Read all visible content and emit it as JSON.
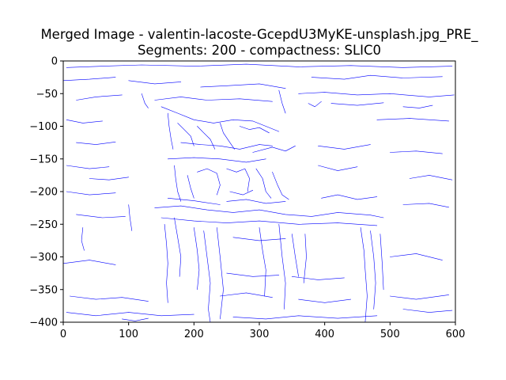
{
  "chart_data": {
    "type": "contour",
    "title_line1": "Merged Image - valentin-lacoste-GcepdU3MyKE-unsplash.jpg_PRE_",
    "title_line2": "Segments: 200 - compactness: SLIC0",
    "xlabel": "",
    "ylabel": "",
    "xlim": [
      0,
      600
    ],
    "ylim": [
      -400,
      0
    ],
    "x_ticks": [
      0,
      100,
      200,
      300,
      400,
      500,
      600
    ],
    "y_ticks": [
      0,
      -50,
      -100,
      -150,
      -200,
      -250,
      -300,
      -350,
      -400
    ],
    "grid": false,
    "line_color": "#0000ff",
    "segments": [
      [
        [
          5,
          -10
        ],
        [
          60,
          -8
        ],
        [
          120,
          -6
        ],
        [
          200,
          -8
        ],
        [
          280,
          -5
        ],
        [
          360,
          -9
        ],
        [
          440,
          -7
        ],
        [
          520,
          -10
        ],
        [
          595,
          -8
        ]
      ],
      [
        [
          0,
          -30
        ],
        [
          40,
          -28
        ],
        [
          80,
          -25
        ]
      ],
      [
        [
          100,
          -30
        ],
        [
          140,
          -35
        ],
        [
          180,
          -32
        ]
      ],
      [
        [
          210,
          -40
        ],
        [
          250,
          -38
        ],
        [
          300,
          -35
        ],
        [
          340,
          -42
        ]
      ],
      [
        [
          380,
          -25
        ],
        [
          430,
          -28
        ],
        [
          470,
          -22
        ],
        [
          520,
          -26
        ],
        [
          580,
          -24
        ]
      ],
      [
        [
          20,
          -60
        ],
        [
          50,
          -55
        ],
        [
          90,
          -52
        ]
      ],
      [
        [
          120,
          -50
        ],
        [
          125,
          -65
        ],
        [
          130,
          -72
        ]
      ],
      [
        [
          140,
          -60
        ],
        [
          180,
          -55
        ],
        [
          220,
          -60
        ],
        [
          270,
          -58
        ],
        [
          320,
          -62
        ]
      ],
      [
        [
          330,
          -45
        ],
        [
          335,
          -65
        ],
        [
          340,
          -80
        ]
      ],
      [
        [
          360,
          -50
        ],
        [
          400,
          -48
        ],
        [
          450,
          -52
        ],
        [
          500,
          -50
        ],
        [
          560,
          -55
        ],
        [
          598,
          -52
        ]
      ],
      [
        [
          375,
          -65
        ],
        [
          385,
          -70
        ],
        [
          395,
          -62
        ]
      ],
      [
        [
          410,
          -65
        ],
        [
          450,
          -68
        ],
        [
          490,
          -64
        ]
      ],
      [
        [
          520,
          -70
        ],
        [
          545,
          -72
        ],
        [
          565,
          -68
        ]
      ],
      [
        [
          5,
          -90
        ],
        [
          30,
          -95
        ],
        [
          60,
          -92
        ]
      ],
      [
        [
          480,
          -90
        ],
        [
          530,
          -88
        ],
        [
          590,
          -92
        ]
      ],
      [
        [
          150,
          -70
        ],
        [
          175,
          -80
        ],
        [
          200,
          -90
        ],
        [
          230,
          -95
        ],
        [
          260,
          -90
        ],
        [
          290,
          -92
        ],
        [
          310,
          -100
        ],
        [
          330,
          -108
        ]
      ],
      [
        [
          160,
          -80
        ],
        [
          162,
          -100
        ],
        [
          165,
          -120
        ],
        [
          168,
          -135
        ]
      ],
      [
        [
          175,
          -95
        ],
        [
          185,
          -105
        ],
        [
          195,
          -115
        ],
        [
          200,
          -130
        ]
      ],
      [
        [
          205,
          -100
        ],
        [
          215,
          -110
        ],
        [
          225,
          -120
        ],
        [
          232,
          -135
        ]
      ],
      [
        [
          240,
          -95
        ],
        [
          245,
          -110
        ],
        [
          255,
          -125
        ],
        [
          262,
          -135
        ]
      ],
      [
        [
          270,
          -100
        ],
        [
          285,
          -105
        ],
        [
          300,
          -102
        ],
        [
          315,
          -110
        ]
      ],
      [
        [
          180,
          -125
        ],
        [
          210,
          -128
        ],
        [
          240,
          -130
        ],
        [
          270,
          -135
        ],
        [
          300,
          -128
        ],
        [
          320,
          -130
        ]
      ],
      [
        [
          290,
          -140
        ],
        [
          320,
          -132
        ],
        [
          340,
          -138
        ],
        [
          355,
          -130
        ]
      ],
      [
        [
          160,
          -150
        ],
        [
          200,
          -148
        ],
        [
          240,
          -150
        ],
        [
          280,
          -155
        ],
        [
          310,
          -150
        ]
      ],
      [
        [
          5,
          -160
        ],
        [
          40,
          -165
        ],
        [
          70,
          -162
        ]
      ],
      [
        [
          20,
          -125
        ],
        [
          50,
          -128
        ],
        [
          80,
          -124
        ]
      ],
      [
        [
          390,
          -130
        ],
        [
          430,
          -135
        ],
        [
          470,
          -128
        ]
      ],
      [
        [
          500,
          -140
        ],
        [
          540,
          -138
        ],
        [
          580,
          -142
        ]
      ],
      [
        [
          170,
          -160
        ],
        [
          172,
          -180
        ],
        [
          175,
          -200
        ],
        [
          180,
          -215
        ]
      ],
      [
        [
          190,
          -175
        ],
        [
          195,
          -195
        ],
        [
          200,
          -210
        ]
      ],
      [
        [
          205,
          -170
        ],
        [
          220,
          -165
        ],
        [
          235,
          -172
        ],
        [
          240,
          -190
        ],
        [
          235,
          -205
        ]
      ],
      [
        [
          250,
          -165
        ],
        [
          265,
          -170
        ],
        [
          278,
          -165
        ],
        [
          285,
          -180
        ],
        [
          282,
          -200
        ]
      ],
      [
        [
          295,
          -165
        ],
        [
          305,
          -180
        ],
        [
          310,
          -200
        ],
        [
          318,
          -210
        ]
      ],
      [
        [
          320,
          -170
        ],
        [
          328,
          -190
        ],
        [
          335,
          -205
        ],
        [
          345,
          -212
        ]
      ],
      [
        [
          255,
          -200
        ],
        [
          275,
          -205
        ],
        [
          290,
          -198
        ]
      ],
      [
        [
          250,
          -215
        ],
        [
          280,
          -212
        ],
        [
          310,
          -218
        ],
        [
          340,
          -215
        ]
      ],
      [
        [
          160,
          -210
        ],
        [
          200,
          -214
        ],
        [
          240,
          -220
        ]
      ],
      [
        [
          5,
          -200
        ],
        [
          40,
          -205
        ],
        [
          80,
          -202
        ]
      ],
      [
        [
          20,
          -235
        ],
        [
          60,
          -240
        ],
        [
          95,
          -238
        ]
      ],
      [
        [
          100,
          -220
        ],
        [
          102,
          -240
        ],
        [
          105,
          -260
        ]
      ],
      [
        [
          30,
          -255
        ],
        [
          28,
          -275
        ],
        [
          32,
          -290
        ]
      ],
      [
        [
          140,
          -225
        ],
        [
          180,
          -222
        ],
        [
          220,
          -228
        ],
        [
          260,
          -232
        ],
        [
          300,
          -228
        ],
        [
          340,
          -235
        ],
        [
          380,
          -238
        ],
        [
          420,
          -232
        ],
        [
          470,
          -236
        ],
        [
          490,
          -240
        ]
      ],
      [
        [
          150,
          -240
        ],
        [
          200,
          -245
        ],
        [
          250,
          -248
        ],
        [
          300,
          -245
        ],
        [
          360,
          -250
        ],
        [
          420,
          -248
        ],
        [
          480,
          -252
        ]
      ],
      [
        [
          155,
          -250
        ],
        [
          158,
          -280
        ],
        [
          160,
          -310
        ],
        [
          158,
          -340
        ],
        [
          160,
          -370
        ]
      ],
      [
        [
          170,
          -240
        ],
        [
          175,
          -270
        ],
        [
          180,
          -300
        ],
        [
          178,
          -330
        ]
      ],
      [
        [
          200,
          -255
        ],
        [
          205,
          -290
        ],
        [
          208,
          -320
        ],
        [
          205,
          -350
        ]
      ],
      [
        [
          215,
          -260
        ],
        [
          220,
          -300
        ],
        [
          225,
          -340
        ],
        [
          222,
          -380
        ],
        [
          225,
          -400
        ]
      ],
      [
        [
          235,
          -255
        ],
        [
          240,
          -300
        ],
        [
          245,
          -350
        ],
        [
          240,
          -395
        ]
      ],
      [
        [
          260,
          -270
        ],
        [
          300,
          -275
        ],
        [
          340,
          -272
        ]
      ],
      [
        [
          300,
          -255
        ],
        [
          305,
          -290
        ],
        [
          310,
          -320
        ],
        [
          308,
          -360
        ]
      ],
      [
        [
          330,
          -250
        ],
        [
          335,
          -300
        ],
        [
          340,
          -340
        ],
        [
          338,
          -380
        ]
      ],
      [
        [
          350,
          -265
        ],
        [
          355,
          -300
        ],
        [
          360,
          -330
        ]
      ],
      [
        [
          370,
          -265
        ],
        [
          372,
          -300
        ],
        [
          368,
          -340
        ]
      ],
      [
        [
          455,
          -255
        ],
        [
          460,
          -290
        ],
        [
          462,
          -320
        ],
        [
          465,
          -360
        ],
        [
          462,
          -400
        ]
      ],
      [
        [
          470,
          -260
        ],
        [
          475,
          -300
        ],
        [
          478,
          -340
        ],
        [
          475,
          -380
        ]
      ],
      [
        [
          485,
          -265
        ],
        [
          488,
          -310
        ],
        [
          490,
          -350
        ]
      ],
      [
        [
          250,
          -325
        ],
        [
          290,
          -330
        ],
        [
          330,
          -328
        ]
      ],
      [
        [
          350,
          -330
        ],
        [
          390,
          -335
        ],
        [
          430,
          -332
        ]
      ],
      [
        [
          0,
          -310
        ],
        [
          40,
          -305
        ],
        [
          80,
          -312
        ]
      ],
      [
        [
          500,
          -300
        ],
        [
          540,
          -295
        ],
        [
          580,
          -305
        ]
      ],
      [
        [
          10,
          -360
        ],
        [
          50,
          -365
        ],
        [
          90,
          -362
        ],
        [
          130,
          -368
        ]
      ],
      [
        [
          240,
          -360
        ],
        [
          280,
          -355
        ],
        [
          320,
          -362
        ]
      ],
      [
        [
          360,
          -365
        ],
        [
          400,
          -370
        ],
        [
          440,
          -365
        ]
      ],
      [
        [
          500,
          -360
        ],
        [
          540,
          -365
        ],
        [
          590,
          -358
        ]
      ],
      [
        [
          5,
          -385
        ],
        [
          50,
          -390
        ],
        [
          100,
          -385
        ],
        [
          150,
          -390
        ],
        [
          200,
          -388
        ]
      ],
      [
        [
          260,
          -392
        ],
        [
          310,
          -395
        ],
        [
          360,
          -390
        ],
        [
          420,
          -394
        ],
        [
          480,
          -390
        ]
      ],
      [
        [
          520,
          -380
        ],
        [
          560,
          -385
        ],
        [
          595,
          -382
        ]
      ],
      [
        [
          90,
          -395
        ],
        [
          110,
          -398
        ],
        [
          130,
          -394
        ]
      ],
      [
        [
          395,
          -210
        ],
        [
          420,
          -205
        ],
        [
          450,
          -212
        ],
        [
          480,
          -208
        ]
      ],
      [
        [
          520,
          -220
        ],
        [
          560,
          -218
        ],
        [
          590,
          -224
        ]
      ],
      [
        [
          40,
          -180
        ],
        [
          70,
          -182
        ],
        [
          100,
          -178
        ]
      ],
      [
        [
          390,
          -160
        ],
        [
          420,
          -168
        ],
        [
          450,
          -162
        ]
      ],
      [
        [
          530,
          -180
        ],
        [
          560,
          -175
        ],
        [
          595,
          -182
        ]
      ]
    ]
  }
}
